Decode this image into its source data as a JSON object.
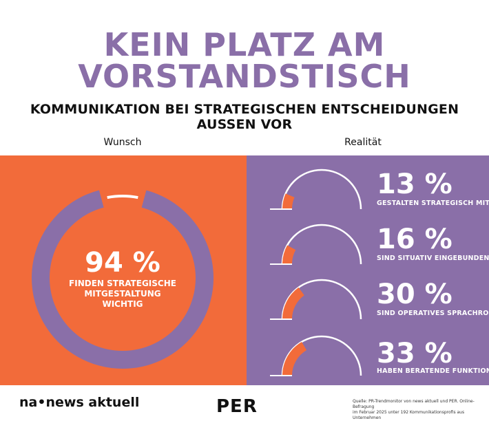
{
  "header": {
    "title_line1": "KEIN PLATZ AM",
    "title_line2": "VORSTANDSTISCH",
    "subtitle": "KOMMUNIKATION BEI STRATEGISCHEN ENTSCHEIDUNGEN AUSSEN VOR"
  },
  "columns": {
    "wish_label": "Wunsch",
    "reality_label": "Realität"
  },
  "colors": {
    "purple": "#8a6fa8",
    "orange": "#f26b3a",
    "white": "#ffffff"
  },
  "chart_data": [
    {
      "type": "pie",
      "values": [
        94,
        6
      ],
      "center_value": "94 %",
      "center_text_line1": "FINDEN STRATEGISCHE",
      "center_text_line2": "MITGESTALTUNG WICHTIG"
    },
    {
      "type": "bar",
      "categories": [
        "GESTALTEN STRATEGISCH MIT",
        "SIND SITUATIV EINGEBUNDEN",
        "SIND OPERATIVES SPRACHROHR",
        "HABEN BERATENDE FUNKTION"
      ],
      "values": [
        13,
        16,
        30,
        33
      ],
      "value_labels": [
        "13 %",
        "16 %",
        "30 %",
        "33 %"
      ],
      "ylim": [
        0,
        100
      ]
    }
  ],
  "footer": {
    "logo_left": "na•news aktuell",
    "logo_center": "PER",
    "source_line1": "Quelle: PR-Trendmonitor von news aktuell und PER. Online-Befragung",
    "source_line2": "im Februar 2025 unter 192 Kommunikationsprofis aus Unternehmen"
  }
}
